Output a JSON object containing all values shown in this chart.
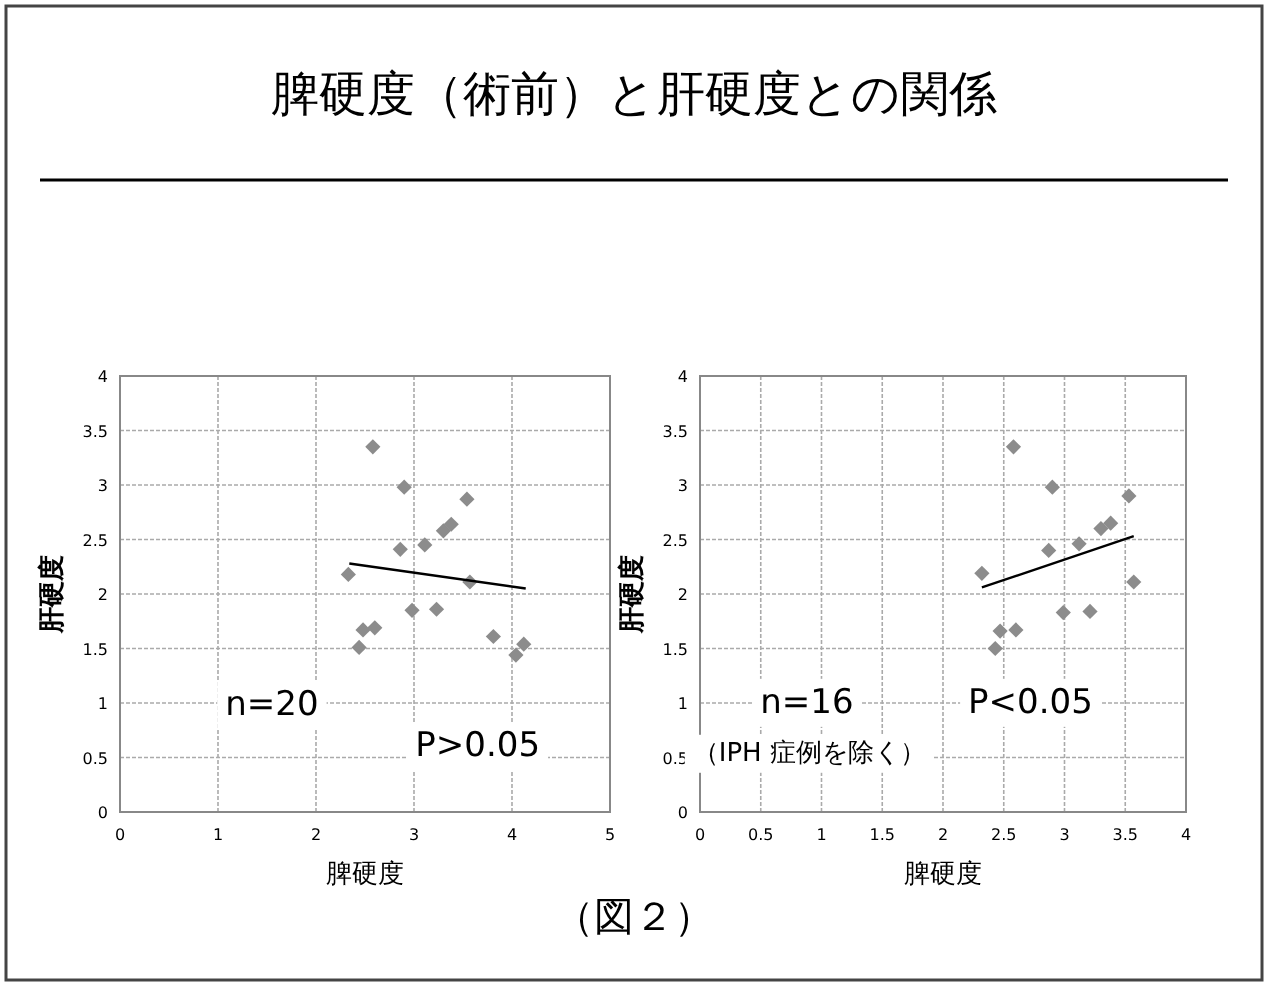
{
  "chart_data": [
    {
      "type": "scatter",
      "title": "脾硬度（術前）と肝硬度との関係",
      "xlabel": "脾硬度",
      "ylabel": "肝硬度",
      "xlim": [
        0,
        5
      ],
      "xticks": [
        0,
        1,
        2,
        3,
        4,
        5
      ],
      "ylim": [
        0,
        4
      ],
      "yticks": [
        0,
        0.5,
        1,
        1.5,
        2,
        2.5,
        3,
        3.5,
        4
      ],
      "grid": true,
      "annotations": [
        "n=20",
        "P>0.05"
      ],
      "series": [
        {
          "type": "scatter",
          "marker": "diamond",
          "color": "#8c8c8c",
          "x": [
            2.33,
            2.48,
            2.6,
            2.44,
            2.86,
            2.9,
            2.98,
            3.11,
            3.23,
            3.3,
            3.38,
            3.54,
            3.57,
            3.81,
            4.04,
            4.12,
            2.58
          ],
          "values": [
            2.18,
            1.67,
            1.69,
            1.51,
            2.41,
            2.98,
            1.85,
            2.45,
            1.86,
            2.58,
            2.64,
            2.87,
            2.11,
            1.61,
            1.44,
            1.54,
            3.35
          ]
        },
        {
          "type": "line",
          "color": "#000000",
          "x": [
            2.34,
            4.14
          ],
          "values": [
            2.28,
            2.05
          ]
        }
      ]
    },
    {
      "type": "scatter",
      "xlabel": "脾硬度",
      "ylabel": "肝硬度",
      "xlim": [
        0,
        4
      ],
      "xticks": [
        0,
        0.5,
        1,
        1.5,
        2,
        2.5,
        3,
        3.5,
        4
      ],
      "ylim": [
        0,
        4
      ],
      "yticks": [
        0,
        0.5,
        1,
        1.5,
        2,
        2.5,
        3,
        3.5,
        4
      ],
      "grid": true,
      "annotations": [
        "n=16",
        "（IPH 症例を除く）",
        "P<0.05",
        "（図２）"
      ],
      "series": [
        {
          "type": "scatter",
          "marker": "diamond",
          "color": "#8c8c8c",
          "x": [
            2.32,
            2.47,
            2.6,
            2.43,
            2.87,
            2.9,
            2.99,
            3.12,
            3.21,
            3.3,
            3.38,
            3.53,
            3.57,
            2.58
          ],
          "values": [
            2.19,
            1.66,
            1.67,
            1.5,
            2.4,
            2.98,
            1.83,
            2.46,
            1.84,
            2.6,
            2.65,
            2.9,
            2.11,
            3.35
          ]
        },
        {
          "type": "line",
          "color": "#000000",
          "x": [
            2.32,
            3.57
          ],
          "values": [
            2.06,
            2.53
          ]
        }
      ]
    }
  ]
}
